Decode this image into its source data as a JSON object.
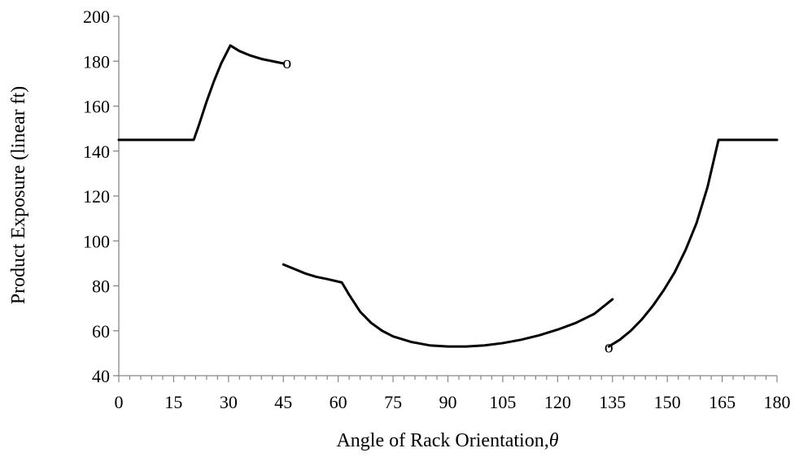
{
  "chart_data": {
    "type": "line",
    "title": "",
    "xlabel": "Angle of Rack Orientation,",
    "xlabel_symbol": "θ",
    "ylabel": "Product Exposure (linear ft)",
    "xlim": [
      0,
      180
    ],
    "ylim": [
      40,
      200
    ],
    "xticks": [
      0,
      15,
      30,
      45,
      60,
      75,
      90,
      105,
      120,
      135,
      150,
      165,
      180
    ],
    "yticks": [
      40,
      60,
      80,
      100,
      120,
      140,
      160,
      180,
      200
    ],
    "x_minor_step": 3,
    "grid": false,
    "legend": "none",
    "line_color": "#000000",
    "series": [
      {
        "points": [
          [
            0,
            145
          ],
          [
            20.5,
            145
          ],
          [
            22,
            152
          ],
          [
            24,
            162
          ],
          [
            26,
            171
          ],
          [
            28,
            179
          ],
          [
            30.5,
            187
          ],
          [
            33,
            184.5
          ],
          [
            36,
            182.5
          ],
          [
            39,
            181
          ],
          [
            42,
            180
          ],
          [
            45,
            179
          ]
        ]
      },
      {
        "points": [
          [
            45,
            89.5
          ],
          [
            48,
            87.5
          ],
          [
            51,
            85.5
          ],
          [
            54,
            84
          ],
          [
            57,
            83
          ],
          [
            61,
            81.5
          ],
          [
            63,
            76
          ],
          [
            66,
            68.5
          ],
          [
            69,
            63.5
          ],
          [
            72,
            60
          ],
          [
            75,
            57.5
          ],
          [
            80,
            55
          ],
          [
            85,
            53.5
          ],
          [
            90,
            53
          ],
          [
            95,
            53
          ],
          [
            100,
            53.5
          ],
          [
            105,
            54.5
          ],
          [
            110,
            56
          ],
          [
            115,
            58
          ],
          [
            120,
            60.5
          ],
          [
            125,
            63.5
          ],
          [
            130,
            67.5
          ],
          [
            135,
            74
          ]
        ]
      },
      {
        "points": [
          [
            134,
            53
          ],
          [
            137,
            56
          ],
          [
            140,
            60
          ],
          [
            143,
            65
          ],
          [
            146,
            71
          ],
          [
            149,
            78
          ],
          [
            152,
            86
          ],
          [
            155,
            96
          ],
          [
            158,
            108
          ],
          [
            161,
            124
          ],
          [
            163,
            138
          ],
          [
            164,
            145
          ],
          [
            180,
            145
          ]
        ]
      }
    ],
    "annotations": [
      {
        "text": "o",
        "x": 46,
        "y": 179
      },
      {
        "text": "o",
        "x": 134,
        "y": 52.5
      }
    ]
  }
}
